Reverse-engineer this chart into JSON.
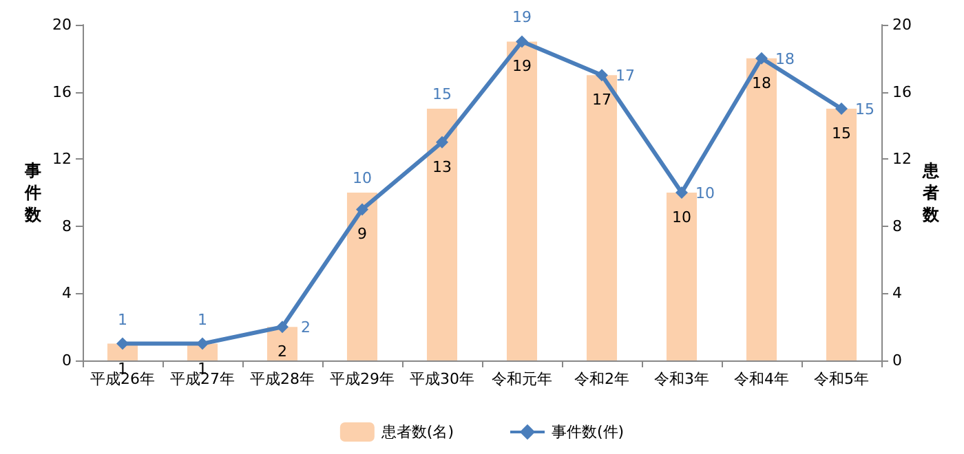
{
  "chart_data": {
    "type": "bar",
    "categories": [
      "平成26年",
      "平成27年",
      "平成28年",
      "平成29年",
      "平成30年",
      "令和元年",
      "令和2年",
      "令和3年",
      "令和4年",
      "令和5年"
    ],
    "ylabel": "事件数",
    "y2label": "患者数",
    "series": [
      {
        "name": "患者数(名)",
        "type": "bar",
        "axis": "y2",
        "color": "#fcd0ac",
        "values": [
          1,
          1,
          2,
          10,
          15,
          19,
          17,
          10,
          18,
          15
        ]
      },
      {
        "name": "事件数(件)",
        "type": "line",
        "color": "#4a7ebb",
        "values": [
          1,
          1,
          2,
          9,
          13,
          19,
          17,
          10,
          18,
          15
        ]
      }
    ],
    "ylim": [
      0,
      20
    ],
    "yticks": [
      0,
      4,
      8,
      12,
      16,
      20
    ],
    "y2lim": [
      0,
      20
    ],
    "y2ticks": [
      0,
      4,
      8,
      12,
      16,
      20
    ],
    "data_labels": true,
    "legend": "bottom",
    "marker": "diamond",
    "grid": false
  }
}
